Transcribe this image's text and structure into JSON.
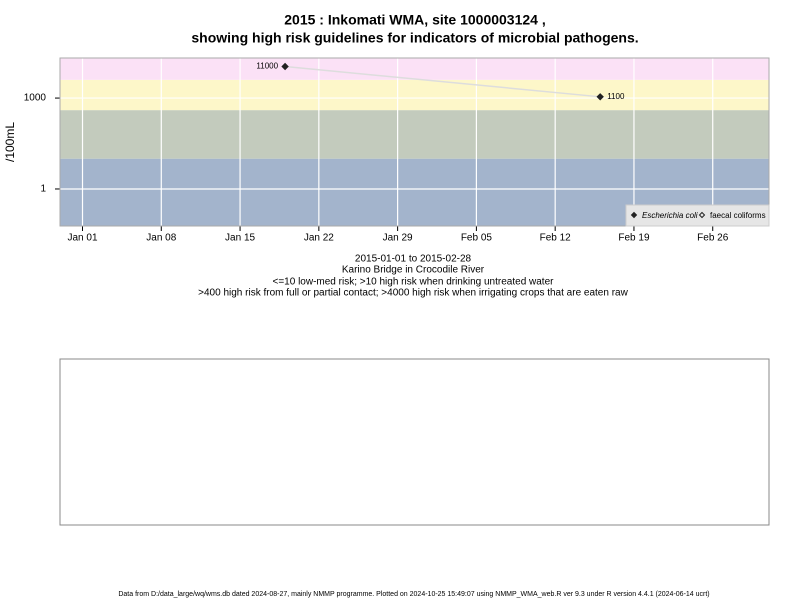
{
  "chart_data": {
    "type": "scatter",
    "title": [
      "2015 : Inkomati WMA, site 1000003124 ,",
      "showing high risk guidelines for indicators of microbial pathogens."
    ],
    "ylabel": "/100mL",
    "subtitle": [
      "2015-01-01 to 2015-02-28",
      "Karino Bridge in Crocodile River",
      "<=10 low-med risk; >10 high risk when drinking untreated water",
      ">400 high risk from full or partial contact; >4000 high risk when irrigating crops that are eaten raw"
    ],
    "footer": "Data from D:/data_large/wq/wms.db dated 2024-08-27, mainly NMMP programme. Plotted on 2024-10-25 15:49:07 using NMMP_WMA_web.R ver 9.3 under R version 4.4.1 (2024-06-14 ucrt)",
    "ylog": true,
    "ylim": [
      0.06,
      21000
    ],
    "yticks": [
      1,
      1000
    ],
    "xlim": [
      "2014-12-30",
      "2015-03-03"
    ],
    "xticks": [
      {
        "value": "2015-01-01",
        "label": "Jan 01"
      },
      {
        "value": "2015-01-08",
        "label": "Jan 08"
      },
      {
        "value": "2015-01-15",
        "label": "Jan 15"
      },
      {
        "value": "2015-01-22",
        "label": "Jan 22"
      },
      {
        "value": "2015-01-29",
        "label": "Jan 29"
      },
      {
        "value": "2015-02-05",
        "label": "Feb 05"
      },
      {
        "value": "2015-02-12",
        "label": "Feb 12"
      },
      {
        "value": "2015-02-19",
        "label": "Feb 19"
      },
      {
        "value": "2015-02-26",
        "label": "Feb 26"
      }
    ],
    "grid": true,
    "thresholds": [
      10,
      400,
      4000
    ],
    "band_colors": [
      "#a3b4cc",
      "#c3cbbd",
      "#fdf7c9",
      "#fbe1f6"
    ],
    "legend": "bottom-right",
    "series": [
      {
        "name": "Escherichia coli",
        "color": "#222222",
        "line_color": "#dddddd",
        "x": [
          "2015-01-19",
          "2015-02-16"
        ],
        "values": [
          11000,
          1100
        ]
      },
      {
        "name": "faecal coliforms",
        "color": "#222222",
        "x": [],
        "values": []
      }
    ]
  }
}
